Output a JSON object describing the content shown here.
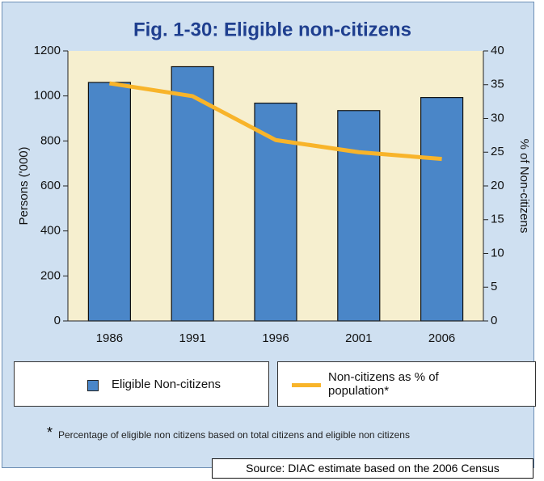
{
  "chart_data": {
    "type": "bar",
    "title": "Fig. 1-30: Eligible non-citizens",
    "categories": [
      "1986",
      "1991",
      "1996",
      "2001",
      "2006"
    ],
    "series": [
      {
        "name": "Eligible Non-citizens",
        "type": "bar",
        "color": "#4a86c8",
        "values": [
          1060,
          1130,
          968,
          935,
          993
        ]
      },
      {
        "name": "Non-citizens as % of population*",
        "type": "line",
        "axis": "y2",
        "color": "#f8b42a",
        "values": [
          35.2,
          33.3,
          26.8,
          25.0,
          24.0
        ]
      }
    ],
    "ylabel": "Persons ('000)",
    "y2label": "% of Non-citizens",
    "ylim": [
      0,
      1200
    ],
    "yticks": [
      0,
      200,
      400,
      600,
      800,
      1000,
      1200
    ],
    "y2lim": [
      0,
      40
    ],
    "y2ticks": [
      0,
      5,
      10,
      15,
      20,
      25,
      30,
      35,
      40
    ],
    "footnote_marker": "*",
    "footnote": "Percentage of eligible non citizens based on total citizens and eligible non citizens",
    "source": "Source: DIAC estimate based on the 2006 Census"
  }
}
